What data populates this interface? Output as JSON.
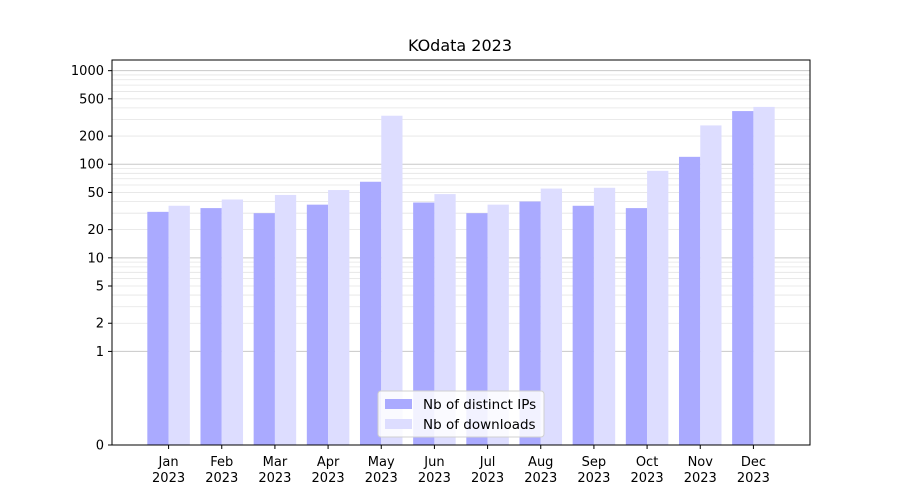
{
  "chart_data": {
    "type": "bar",
    "title": "KOdata 2023",
    "xlabel": "",
    "ylabel": "",
    "yscale": "symlog",
    "ylim": [
      0,
      1300
    ],
    "y_ticks": [
      0,
      1,
      2,
      5,
      10,
      20,
      50,
      100,
      200,
      500,
      1000
    ],
    "y_tick_labels": [
      "0",
      "1",
      "2",
      "5",
      "10",
      "20",
      "50",
      "100",
      "200",
      "500",
      "1000"
    ],
    "grid": true,
    "legend_position": "bottom-center",
    "categories": [
      "Jan\n2023",
      "Feb\n2023",
      "Mar\n2023",
      "Apr\n2023",
      "May\n2023",
      "Jun\n2023",
      "Jul\n2023",
      "Aug\n2023",
      "Sep\n2023",
      "Oct\n2023",
      "Nov\n2023",
      "Dec\n2023"
    ],
    "category_lines": [
      [
        "Jan",
        "2023"
      ],
      [
        "Feb",
        "2023"
      ],
      [
        "Mar",
        "2023"
      ],
      [
        "Apr",
        "2023"
      ],
      [
        "May",
        "2023"
      ],
      [
        "Jun",
        "2023"
      ],
      [
        "Jul",
        "2023"
      ],
      [
        "Aug",
        "2023"
      ],
      [
        "Sep",
        "2023"
      ],
      [
        "Oct",
        "2023"
      ],
      [
        "Nov",
        "2023"
      ],
      [
        "Dec",
        "2023"
      ]
    ],
    "series": [
      {
        "name": "Nb of distinct IPs",
        "color": "#aaaaff",
        "values": [
          31,
          34,
          30,
          37,
          65,
          39,
          30,
          40,
          36,
          34,
          120,
          370
        ]
      },
      {
        "name": "Nb of downloads",
        "color": "#ddddff",
        "values": [
          36,
          42,
          47,
          53,
          330,
          48,
          37,
          55,
          56,
          85,
          260,
          410
        ]
      }
    ]
  }
}
